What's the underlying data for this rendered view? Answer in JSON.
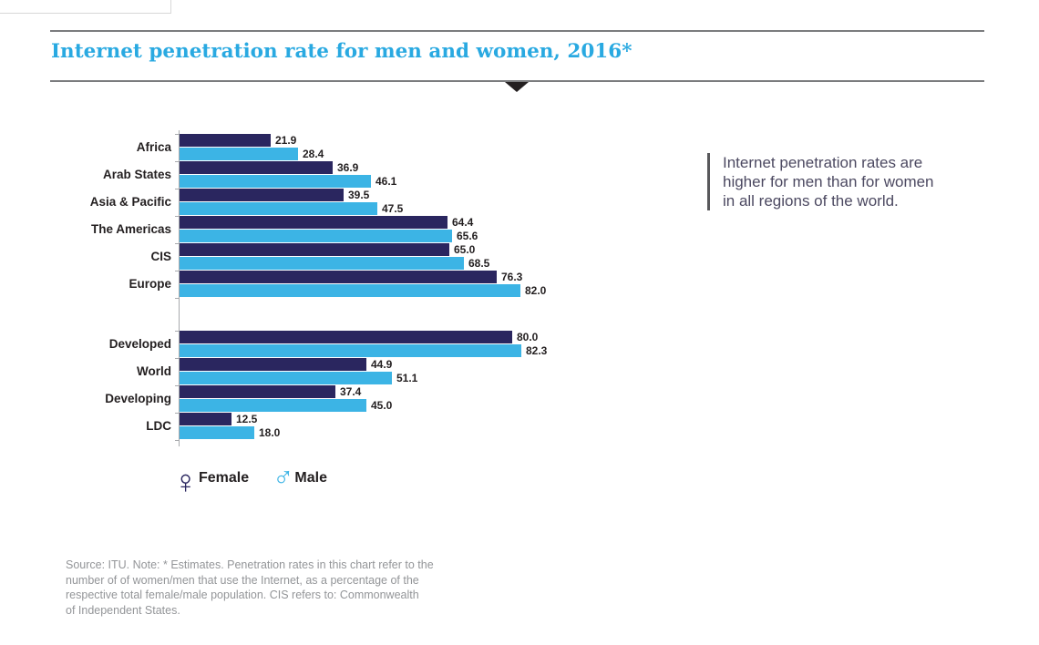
{
  "header": {
    "title": "Internet penetration rate for men and women, 2016*"
  },
  "chart_data": {
    "type": "bar",
    "orientation": "horizontal",
    "title": "Internet penetration rate for men and women, 2016*",
    "unit": "percent of population",
    "xlim": [
      0,
      100
    ],
    "grid": false,
    "legend_position": "bottom-left",
    "categories": [
      "Africa",
      "Arab States",
      "Asia & Pacific",
      "The Americas",
      "CIS",
      "Europe",
      "Developed",
      "World",
      "Developing",
      "LDC"
    ],
    "group_break_before_index": 6,
    "series": [
      {
        "name": "Female",
        "color": "#2a265f",
        "values": [
          21.9,
          36.9,
          39.5,
          64.4,
          65.0,
          76.3,
          80.0,
          44.9,
          37.4,
          12.5
        ],
        "labels": [
          "21.9",
          "36.9",
          "39.5",
          "64.4",
          "65.0",
          "76.3",
          "80.0",
          "44.9",
          "37.4",
          "12.5"
        ]
      },
      {
        "name": "Male",
        "color": "#3cb4e5",
        "values": [
          28.4,
          46.1,
          47.5,
          65.6,
          68.5,
          82.0,
          82.3,
          51.1,
          45.0,
          18.0
        ],
        "labels": [
          "28.4",
          "46.1",
          "47.5",
          "65.6",
          "68.5",
          "82.0",
          "82.3",
          "51.1",
          "45.0",
          "18.0"
        ]
      }
    ],
    "legend": [
      {
        "label": "Female",
        "symbol": "♀",
        "symbol_name": "female-sign-icon",
        "color": "#2a265f"
      },
      {
        "label": "Male",
        "symbol": "♂",
        "symbol_name": "male-sign-icon",
        "color": "#3cb4e5"
      }
    ]
  },
  "annotation": {
    "lines": [
      "Internet penetration rates are",
      "higher for men than for women",
      "in all regions of the world."
    ]
  },
  "source": {
    "lines": [
      "Source: ITU. Note: * Estimates. Penetration rates in this chart refer to the",
      "number of of women/men that use the Internet, as a percentage of the",
      "respective total female/male population. CIS refers to: Commonwealth",
      "of Independent States."
    ]
  },
  "colors": {
    "title_blue": "#29a9e1",
    "female_navy": "#2a265f",
    "male_light_blue": "#3cb4e5",
    "rule_gray": "#7b7c7e",
    "triangle_dark": "#231f20",
    "axis_gray": "#a8aaad",
    "label_dark": "#231f20",
    "annotation_text": "#4c4961",
    "annotation_bar": "#58585b",
    "source_gray": "#939598"
  }
}
